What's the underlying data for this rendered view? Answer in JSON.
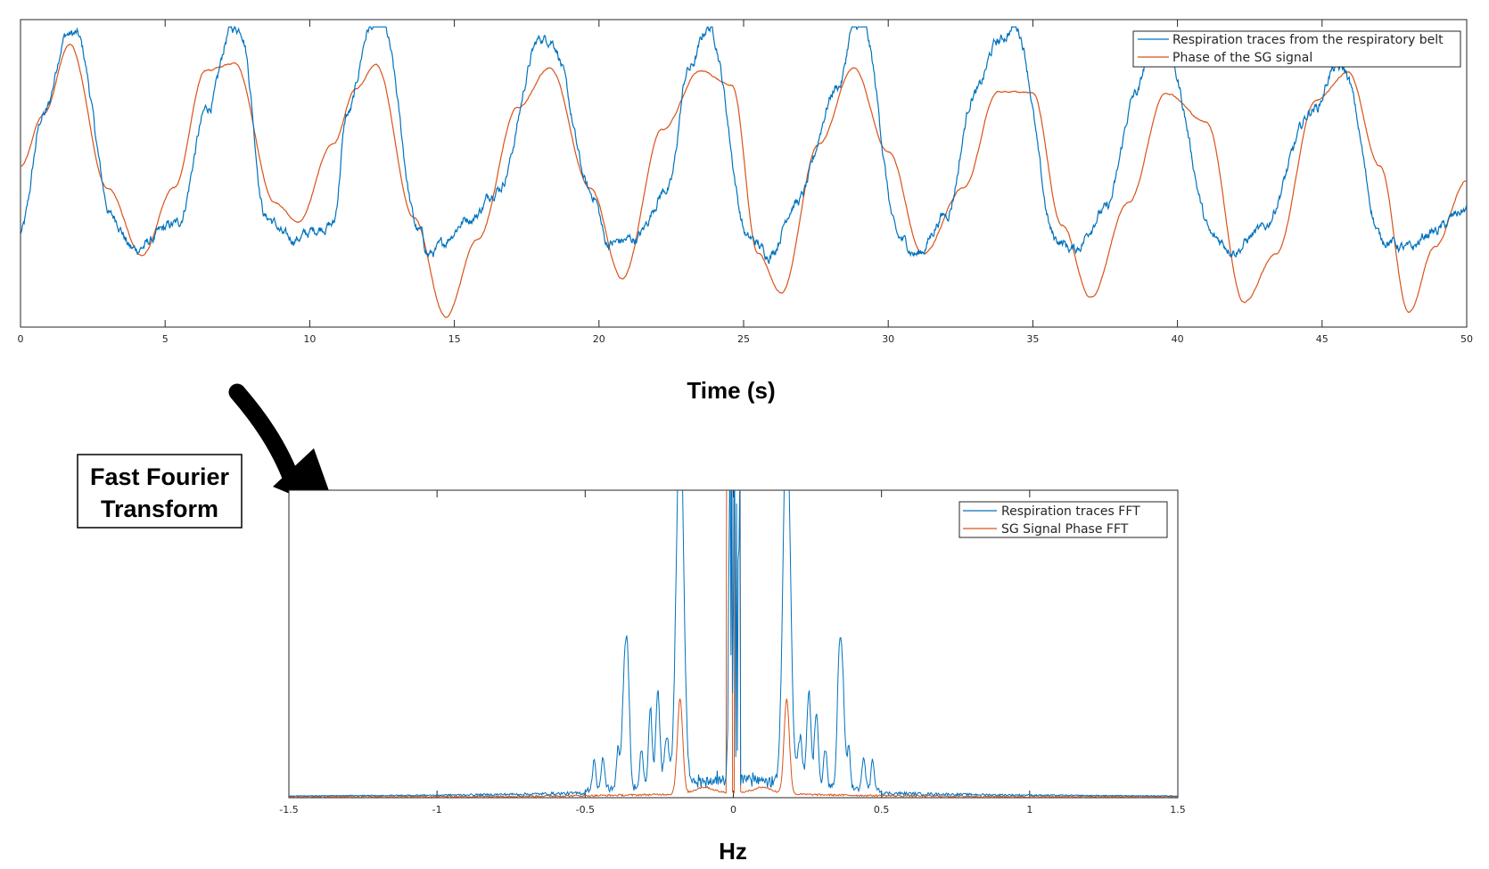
{
  "colors": {
    "series1": "#0072BD",
    "series2": "#D95319",
    "axis": "#262626"
  },
  "annotation": {
    "line1": "Fast Fourier",
    "line2": "Transform",
    "icon": "curved-arrow-icon"
  },
  "chart_data": [
    {
      "type": "line",
      "title": "",
      "xlabel": "Time (s)",
      "ylabel": "",
      "xlim": [
        0,
        50
      ],
      "ylim": [
        -1.05,
        1.05
      ],
      "xticks": [
        0,
        5,
        10,
        15,
        20,
        25,
        30,
        35,
        40,
        45,
        50
      ],
      "xtick_labels": [
        "0",
        "5",
        "10",
        "15",
        "20",
        "25",
        "30",
        "35",
        "40",
        "45",
        "50"
      ],
      "yticks_shown": false,
      "grid": false,
      "legend_position": "top-right",
      "series": [
        {
          "name": "Respiration traces from the respiratory belt",
          "keypoints_x": [
            0,
            0.8,
            1.6,
            1.9,
            3.2,
            3.9,
            5.4,
            6.5,
            7.3,
            7.6,
            8.5,
            9.3,
            10.8,
            11.3,
            12.1,
            12.5,
            13.8,
            14.1,
            15.6,
            16.5,
            18.0,
            18.3,
            19.8,
            20.3,
            21.2,
            22.4,
            23.1,
            23.8,
            25.2,
            25.9,
            26.8,
            28.3,
            28.8,
            29.1,
            30.4,
            31.0,
            32.0,
            33.0,
            33.8,
            34.4,
            35.8,
            36.4,
            37.5,
            38.6,
            39.0,
            39.6,
            41.3,
            42.0,
            42.8,
            44.8,
            45.4,
            45.7,
            47.1,
            48.0,
            48.8,
            50.0
          ],
          "keypoints_y": [
            -0.4,
            0.4,
            0.95,
            0.95,
            -0.3,
            -0.52,
            -0.35,
            0.45,
            0.99,
            0.99,
            -0.3,
            -0.45,
            -0.35,
            0.4,
            1.0,
            1.0,
            -0.4,
            -0.55,
            -0.3,
            -0.1,
            0.92,
            0.92,
            -0.15,
            -0.48,
            -0.45,
            -0.1,
            0.71,
            1.0,
            -0.45,
            -0.55,
            -0.2,
            0.6,
            1.0,
            1.0,
            -0.45,
            -0.55,
            -0.28,
            0.55,
            0.9,
            1.0,
            -0.45,
            -0.52,
            -0.25,
            0.55,
            0.8,
            0.8,
            -0.45,
            -0.52,
            -0.4,
            0.45,
            0.71,
            0.71,
            -0.45,
            -0.52,
            -0.4,
            -0.25
          ]
        },
        {
          "name": "Phase of the SG signal",
          "keypoints_x": [
            0,
            0.8,
            1.7,
            3.0,
            4.2,
            5.3,
            6.4,
            7.4,
            8.8,
            9.6,
            10.8,
            11.6,
            12.3,
            13.6,
            14.7,
            15.8,
            17.2,
            18.3,
            19.7,
            20.8,
            22.2,
            23.5,
            24.6,
            25.5,
            26.3,
            27.6,
            28.8,
            30.0,
            31.2,
            32.6,
            33.8,
            35.0,
            36.0,
            37.0,
            38.3,
            39.6,
            41.0,
            42.3,
            43.4,
            44.8,
            45.9,
            47.0,
            48.0,
            48.9,
            50.0
          ],
          "keypoints_y": [
            0.05,
            0.4,
            0.88,
            -0.1,
            -0.56,
            -0.1,
            0.7,
            0.75,
            -0.2,
            -0.33,
            0.2,
            0.58,
            0.74,
            -0.3,
            -0.98,
            -0.45,
            0.45,
            0.72,
            -0.1,
            -0.72,
            0.3,
            0.7,
            0.6,
            -0.55,
            -0.82,
            0.2,
            0.72,
            0.15,
            -0.55,
            -0.1,
            0.56,
            0.55,
            -0.35,
            -0.85,
            -0.2,
            0.55,
            0.35,
            -0.88,
            -0.55,
            0.5,
            0.69,
            0.05,
            -0.95,
            -0.5,
            -0.05
          ]
        }
      ]
    },
    {
      "type": "line",
      "title": "",
      "xlabel": "Hz",
      "ylabel": "",
      "xlim": [
        -1.5,
        1.5
      ],
      "xticks": [
        -1.5,
        -1,
        -0.5,
        0,
        0.5,
        1,
        1.5
      ],
      "xtick_labels": [
        "-1.5",
        "-1",
        "-0.5",
        "0",
        "0.5",
        "1",
        "1.5"
      ],
      "yticks_shown": false,
      "grid": false,
      "legend_position": "top-right",
      "series": [
        {
          "name": "Respiration traces FFT",
          "peak_freq_hz": [
            -0.18,
            0.18
          ],
          "secondary_peaks_hz": [
            -0.37,
            -0.28,
            -0.26,
            0.26,
            0.28,
            0.37
          ],
          "dc_spike": true
        },
        {
          "name": "SG Signal Phase FFT",
          "peak_freq_hz": [
            -0.18,
            0.18
          ],
          "dc_spike": true
        }
      ]
    }
  ]
}
